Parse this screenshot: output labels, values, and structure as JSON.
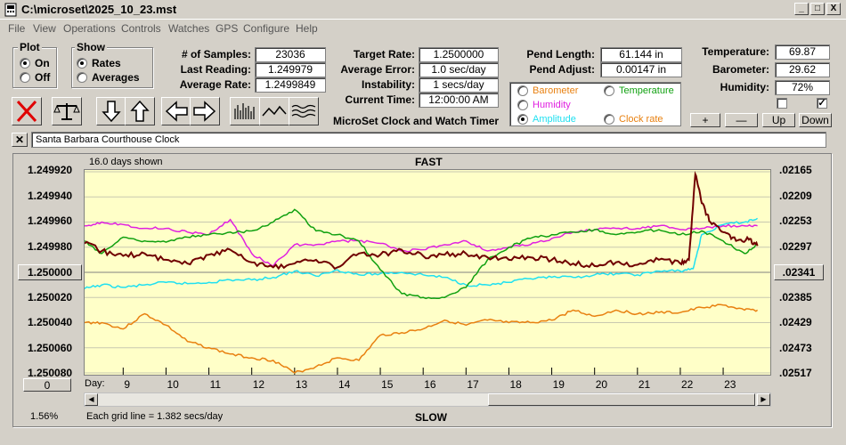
{
  "window": {
    "title": "C:\\microset\\2025_10_23.mst",
    "min": "_",
    "max": "□",
    "close": "X"
  },
  "menu": [
    "File",
    "View",
    "Operations",
    "Controls",
    "Watches",
    "GPS",
    "Configure",
    "Help"
  ],
  "plot_group": {
    "label": "Plot",
    "on": "On",
    "off": "Off"
  },
  "show_group": {
    "label": "Show",
    "rates": "Rates",
    "averages": "Averages"
  },
  "stats": {
    "samples_label": "# of Samples:",
    "samples": "23036",
    "last_label": "Last Reading:",
    "last": "1.249979",
    "avg_label": "Average Rate:",
    "avg": "1.2499849"
  },
  "rates": {
    "target_label": "Target Rate:",
    "target": "1.2500000",
    "error_label": "Average Error:",
    "error": "1.0 sec/day",
    "instab_label": "Instability:",
    "instab": "1 secs/day",
    "time_label": "Current Time:",
    "time": "12:00:00 AM",
    "product": "MicroSet Clock and Watch Timer"
  },
  "pend": {
    "length_label": "Pend Length:",
    "length": "61.144 in",
    "adjust_label": "Pend Adjust:",
    "adjust": "0.00147 in"
  },
  "series_select": {
    "barometer": "Barometer",
    "temperature": "Temperature",
    "humidity": "Humidity",
    "amplitude": "Amplitude",
    "clockrate": "Clock rate"
  },
  "env": {
    "temp_label": "Temperature:",
    "temp": "69.87",
    "baro_label": "Barometer:",
    "baro": "29.62",
    "hum_label": "Humidity:",
    "hum": "72%"
  },
  "adjust_buttons": {
    "plus": "+",
    "minus": "—",
    "up": "Up",
    "down": "Down"
  },
  "clock_name": "Santa Barbara Courthouse Clock",
  "colors": {
    "barometer": "#e88010",
    "temperature": "#10a010",
    "humidity": "#e020e0",
    "amplitude": "#20e0f0",
    "clockrate": "#700000",
    "plot_bg": "#ffffc8"
  },
  "chart": {
    "days_shown": "16.0 days shown",
    "fast": "FAST",
    "slow": "SLOW",
    "left_ticks": [
      "1.249920",
      "1.249940",
      "1.249960",
      "1.249980",
      "1.250000",
      "1.250020",
      "1.250040",
      "1.250060",
      "1.250080"
    ],
    "right_ticks": [
      ".02165",
      ".02209",
      ".02253",
      ".02297",
      ".02341",
      ".02385",
      ".02429",
      ".02473",
      ".02517"
    ],
    "day_label": "Day:",
    "days": [
      "9",
      "10",
      "11",
      "12",
      "13",
      "14",
      "15",
      "16",
      "17",
      "18",
      "19",
      "20",
      "21",
      "22",
      "23"
    ],
    "grid_note": "Each grid line = 1.382 secs/day",
    "zero_button": "0",
    "percent": "1.56%"
  },
  "chart_data": {
    "type": "line",
    "xlabel": "Day:",
    "xlim": [
      8.1,
      24.1
    ],
    "ylim": [
      1.24992,
      1.25008
    ],
    "y2lim": [
      0.02165,
      0.02517
    ],
    "series": [
      {
        "name": "Clock rate",
        "color": "#700000",
        "x": [
          8.1,
          8.5,
          9.0,
          9.5,
          10.0,
          10.5,
          11.0,
          11.5,
          12.0,
          12.5,
          13.0,
          13.5,
          14.0,
          14.5,
          15.0,
          15.5,
          16.0,
          16.5,
          17.0,
          17.5,
          18.0,
          18.5,
          19.0,
          19.5,
          20.0,
          20.5,
          21.0,
          21.5,
          22.0,
          22.2,
          22.35,
          22.5,
          22.7,
          23.0,
          23.3,
          23.6,
          23.8
        ],
        "y": [
          1.249977,
          1.249983,
          1.249987,
          1.249985,
          1.24999,
          1.249993,
          1.249986,
          1.249982,
          1.249992,
          1.249996,
          1.249993,
          1.24999,
          1.249996,
          1.249985,
          1.249986,
          1.249982,
          1.249987,
          1.249986,
          1.249985,
          1.249988,
          1.24999,
          1.249988,
          1.24999,
          1.249993,
          1.249995,
          1.249992,
          1.249994,
          1.24999,
          1.249993,
          1.24999,
          1.249922,
          1.249945,
          1.24996,
          1.249968,
          1.249975,
          1.249974,
          1.249979
        ]
      },
      {
        "name": "Temperature",
        "color": "#10a010",
        "x": [
          8.1,
          8.5,
          9.0,
          9.5,
          10.0,
          10.5,
          11.0,
          11.5,
          12.0,
          12.5,
          13.0,
          13.5,
          14.0,
          14.5,
          15.0,
          15.5,
          16.0,
          16.5,
          17.0,
          17.5,
          18.0,
          18.5,
          19.0,
          19.5,
          20.0,
          20.5,
          21.0,
          21.5,
          22.0,
          22.5,
          23.0,
          23.5,
          23.8
        ],
        "y": [
          1.249975,
          1.249985,
          1.249972,
          1.249975,
          1.249976,
          1.249972,
          1.24997,
          1.249968,
          1.249967,
          1.24996,
          1.24995,
          1.249967,
          1.24997,
          1.249975,
          1.249998,
          1.250017,
          1.25002,
          1.25002,
          1.250012,
          1.24999,
          1.24998,
          1.249973,
          1.24997,
          1.249968,
          1.249966,
          1.24997,
          1.249968,
          1.249966,
          1.24997,
          1.249967,
          1.249975,
          1.249985,
          1.249978
        ]
      },
      {
        "name": "Humidity",
        "color": "#e020e0",
        "x": [
          8.1,
          8.5,
          9.0,
          9.5,
          10.0,
          10.5,
          11.0,
          11.5,
          12.0,
          12.5,
          13.0,
          13.5,
          14.0,
          14.5,
          15.0,
          15.5,
          16.0,
          16.5,
          17.0,
          17.5,
          18.0,
          18.5,
          19.0,
          19.5,
          20.0,
          20.5,
          21.0,
          21.5,
          22.0,
          22.5,
          23.0,
          23.5,
          23.8
        ],
        "y": [
          1.249963,
          1.24996,
          1.249962,
          1.249965,
          1.249965,
          1.249968,
          1.24997,
          1.249958,
          1.249985,
          1.249995,
          1.249978,
          1.249978,
          1.249975,
          1.249975,
          1.249977,
          1.249983,
          1.249982,
          1.249978,
          1.249975,
          1.249983,
          1.24998,
          1.249978,
          1.249973,
          1.249968,
          1.249966,
          1.249965,
          1.249965,
          1.249963,
          1.249966,
          1.249965,
          1.249963,
          1.249963,
          1.249963
        ]
      },
      {
        "name": "Amplitude",
        "color": "#20e0f0",
        "x": [
          8.1,
          8.5,
          9.0,
          9.5,
          10.0,
          10.5,
          11.0,
          11.5,
          12.0,
          12.5,
          13.0,
          13.5,
          14.0,
          14.5,
          15.0,
          15.5,
          16.0,
          16.5,
          17.0,
          17.5,
          18.0,
          18.5,
          19.0,
          19.5,
          20.0,
          20.5,
          21.0,
          21.5,
          22.0,
          22.3,
          22.5,
          23.0,
          23.5,
          23.8
        ],
        "y": [
          1.250013,
          1.25001,
          1.250012,
          1.25001,
          1.250008,
          1.250009,
          1.250008,
          1.250006,
          1.250006,
          1.250004,
          1.249999,
          1.250003,
          1.249998,
          1.250002,
          1.250001,
          1.25,
          1.250002,
          1.250004,
          1.25001,
          1.25001,
          1.250008,
          1.250005,
          1.250004,
          1.250004,
          1.250002,
          1.250001,
          1.250002,
          1.249999,
          1.249999,
          1.249997,
          1.24997,
          1.249962,
          1.24996,
          1.249957
        ]
      },
      {
        "name": "Barometer",
        "color": "#e88010",
        "x": [
          8.1,
          8.5,
          9.0,
          9.5,
          10.0,
          10.5,
          11.0,
          11.5,
          12.0,
          12.5,
          13.0,
          13.5,
          14.0,
          14.5,
          15.0,
          15.5,
          16.0,
          16.5,
          17.0,
          17.5,
          18.0,
          18.5,
          19.0,
          19.5,
          20.0,
          20.5,
          21.0,
          21.5,
          22.0,
          22.5,
          23.0,
          23.5,
          23.8
        ],
        "y": [
          1.25004,
          1.25004,
          1.250045,
          1.250033,
          1.250042,
          1.250055,
          1.25006,
          1.250065,
          1.250068,
          1.25007,
          1.25008,
          1.250075,
          1.250068,
          1.25007,
          1.25005,
          1.250048,
          1.250045,
          1.250038,
          1.250042,
          1.250038,
          1.25004,
          1.25004,
          1.250038,
          1.25003,
          1.250035,
          1.25003,
          1.250033,
          1.250032,
          1.250032,
          1.250028,
          1.250026,
          1.25003,
          1.25003
        ]
      }
    ]
  }
}
